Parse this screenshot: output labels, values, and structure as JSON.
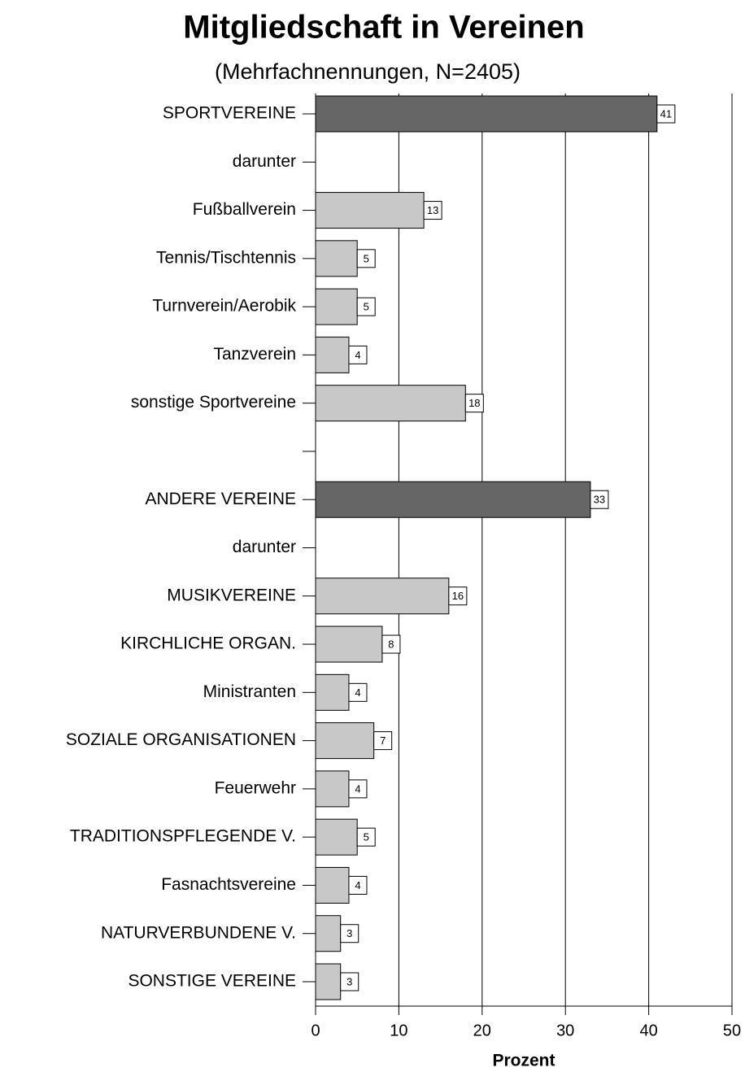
{
  "chart_data": {
    "type": "bar",
    "orientation": "horizontal",
    "title": "Mitgliedschaft in Vereinen",
    "subtitle": "(Mehrfachnennungen, N=2405)",
    "x_label": "Prozent",
    "categories": [
      "SPORTVEREINE",
      "darunter",
      "Fußballverein",
      "Tennis/Tischtennis",
      "Turnverein/Aerobik",
      "Tanzverein",
      "sonstige Sportvereine",
      null,
      "ANDERE VEREINE",
      "darunter",
      "MUSIKVEREINE",
      "KIRCHLICHE ORGAN.",
      "Ministranten",
      "SOZIALE ORGANISATIONEN",
      "Feuerwehr",
      "TRADITIONSPFLEGENDE V.",
      "Fasnachtsvereine",
      "NATURVERBUNDENE V.",
      "SONSTIGE VEREINE"
    ],
    "values": [
      41,
      null,
      13,
      5,
      5,
      4,
      18,
      null,
      33,
      null,
      16,
      8,
      4,
      7,
      4,
      5,
      4,
      3,
      3
    ],
    "colors": [
      "#666666",
      null,
      "#c8c8c8",
      "#c8c8c8",
      "#c8c8c8",
      "#c8c8c8",
      "#c8c8c8",
      null,
      "#666666",
      null,
      "#c8c8c8",
      "#c8c8c8",
      "#c8c8c8",
      "#c8c8c8",
      "#c8c8c8",
      "#c8c8c8",
      "#c8c8c8",
      "#c8c8c8",
      "#c8c8c8"
    ],
    "xlim": [
      0,
      50
    ],
    "xticks": [
      0,
      10,
      20,
      30,
      40,
      50
    ],
    "grid": true
  }
}
